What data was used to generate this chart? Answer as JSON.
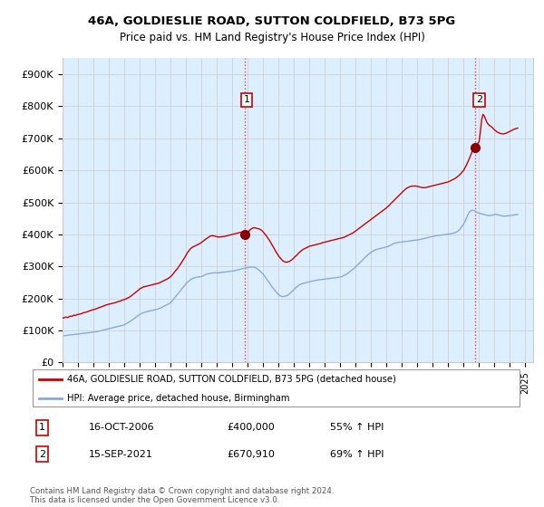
{
  "title": "46A, GOLDIESLIE ROAD, SUTTON COLDFIELD, B73 5PG",
  "subtitle": "Price paid vs. HM Land Registry's House Price Index (HPI)",
  "ylim": [
    0,
    950000
  ],
  "yticks": [
    0,
    100000,
    200000,
    300000,
    400000,
    500000,
    600000,
    700000,
    800000,
    900000
  ],
  "ytick_labels": [
    "£0",
    "£100K",
    "£200K",
    "£300K",
    "£400K",
    "£500K",
    "£600K",
    "£700K",
    "£800K",
    "£900K"
  ],
  "xlim": [
    1995,
    2025.5
  ],
  "xtick_years": [
    1995,
    1996,
    1997,
    1998,
    1999,
    2000,
    2001,
    2002,
    2003,
    2004,
    2005,
    2006,
    2007,
    2008,
    2009,
    2010,
    2011,
    2012,
    2013,
    2014,
    2015,
    2016,
    2017,
    2018,
    2019,
    2020,
    2021,
    2022,
    2023,
    2024,
    2025
  ],
  "property_line_color": "#cc0000",
  "hpi_line_color": "#88aadd",
  "bg_fill_color": "#ddeeff",
  "transaction1_x": 2006.79,
  "transaction1_y": 400000,
  "transaction1_label": "1",
  "transaction1_date": "16-OCT-2006",
  "transaction1_price": "£400,000",
  "transaction1_hpi": "55% ↑ HPI",
  "transaction2_x": 2021.71,
  "transaction2_y": 670910,
  "transaction2_label": "2",
  "transaction2_date": "15-SEP-2021",
  "transaction2_price": "£670,910",
  "transaction2_hpi": "69% ↑ HPI",
  "vline_color": "#dd4444",
  "vline_style": ":",
  "legend_property": "46A, GOLDIESLIE ROAD, SUTTON COLDFIELD, B73 5PG (detached house)",
  "legend_hpi": "HPI: Average price, detached house, Birmingham",
  "footnote": "Contains HM Land Registry data © Crown copyright and database right 2024.\nThis data is licensed under the Open Government Licence v3.0.",
  "property_data_x": [
    1995.0,
    1995.08,
    1995.17,
    1995.25,
    1995.33,
    1995.42,
    1995.5,
    1995.58,
    1995.67,
    1995.75,
    1995.83,
    1995.92,
    1996.0,
    1996.08,
    1996.17,
    1996.25,
    1996.33,
    1996.42,
    1996.5,
    1996.58,
    1996.67,
    1996.75,
    1996.83,
    1996.92,
    1997.0,
    1997.08,
    1997.17,
    1997.25,
    1997.33,
    1997.42,
    1997.5,
    1997.58,
    1997.67,
    1997.75,
    1997.83,
    1997.92,
    1998.0,
    1998.08,
    1998.17,
    1998.25,
    1998.33,
    1998.42,
    1998.5,
    1998.58,
    1998.67,
    1998.75,
    1998.83,
    1998.92,
    1999.0,
    1999.08,
    1999.17,
    1999.25,
    1999.33,
    1999.42,
    1999.5,
    1999.58,
    1999.67,
    1999.75,
    1999.83,
    1999.92,
    2000.0,
    2000.08,
    2000.17,
    2000.25,
    2000.33,
    2000.42,
    2000.5,
    2000.58,
    2000.67,
    2000.75,
    2000.83,
    2000.92,
    2001.0,
    2001.08,
    2001.17,
    2001.25,
    2001.33,
    2001.42,
    2001.5,
    2001.58,
    2001.67,
    2001.75,
    2001.83,
    2001.92,
    2002.0,
    2002.08,
    2002.17,
    2002.25,
    2002.33,
    2002.42,
    2002.5,
    2002.58,
    2002.67,
    2002.75,
    2002.83,
    2002.92,
    2003.0,
    2003.08,
    2003.17,
    2003.25,
    2003.33,
    2003.42,
    2003.5,
    2003.58,
    2003.67,
    2003.75,
    2003.83,
    2003.92,
    2004.0,
    2004.08,
    2004.17,
    2004.25,
    2004.33,
    2004.42,
    2004.5,
    2004.58,
    2004.67,
    2004.75,
    2004.83,
    2004.92,
    2005.0,
    2005.08,
    2005.17,
    2005.25,
    2005.33,
    2005.42,
    2005.5,
    2005.58,
    2005.67,
    2005.75,
    2005.83,
    2005.92,
    2006.0,
    2006.08,
    2006.17,
    2006.25,
    2006.33,
    2006.42,
    2006.5,
    2006.58,
    2006.67,
    2006.75,
    2006.79,
    2007.0,
    2007.08,
    2007.17,
    2007.25,
    2007.33,
    2007.42,
    2007.5,
    2007.58,
    2007.67,
    2007.75,
    2007.83,
    2007.92,
    2008.0,
    2008.08,
    2008.17,
    2008.25,
    2008.33,
    2008.42,
    2008.5,
    2008.58,
    2008.67,
    2008.75,
    2008.83,
    2008.92,
    2009.0,
    2009.08,
    2009.17,
    2009.25,
    2009.33,
    2009.42,
    2009.5,
    2009.58,
    2009.67,
    2009.75,
    2009.83,
    2009.92,
    2010.0,
    2010.08,
    2010.17,
    2010.25,
    2010.33,
    2010.42,
    2010.5,
    2010.58,
    2010.67,
    2010.75,
    2010.83,
    2010.92,
    2011.0,
    2011.08,
    2011.17,
    2011.25,
    2011.33,
    2011.42,
    2011.5,
    2011.58,
    2011.67,
    2011.75,
    2011.83,
    2011.92,
    2012.0,
    2012.08,
    2012.17,
    2012.25,
    2012.33,
    2012.42,
    2012.5,
    2012.58,
    2012.67,
    2012.75,
    2012.83,
    2012.92,
    2013.0,
    2013.08,
    2013.17,
    2013.25,
    2013.33,
    2013.42,
    2013.5,
    2013.58,
    2013.67,
    2013.75,
    2013.83,
    2013.92,
    2014.0,
    2014.08,
    2014.17,
    2014.25,
    2014.33,
    2014.42,
    2014.5,
    2014.58,
    2014.67,
    2014.75,
    2014.83,
    2014.92,
    2015.0,
    2015.08,
    2015.17,
    2015.25,
    2015.33,
    2015.42,
    2015.5,
    2015.58,
    2015.67,
    2015.75,
    2015.83,
    2015.92,
    2016.0,
    2016.08,
    2016.17,
    2016.25,
    2016.33,
    2016.42,
    2016.5,
    2016.58,
    2016.67,
    2016.75,
    2016.83,
    2016.92,
    2017.0,
    2017.08,
    2017.17,
    2017.25,
    2017.33,
    2017.42,
    2017.5,
    2017.58,
    2017.67,
    2017.75,
    2017.83,
    2017.92,
    2018.0,
    2018.08,
    2018.17,
    2018.25,
    2018.33,
    2018.42,
    2018.5,
    2018.58,
    2018.67,
    2018.75,
    2018.83,
    2018.92,
    2019.0,
    2019.08,
    2019.17,
    2019.25,
    2019.33,
    2019.42,
    2019.5,
    2019.58,
    2019.67,
    2019.75,
    2019.83,
    2019.92,
    2020.0,
    2020.08,
    2020.17,
    2020.25,
    2020.33,
    2020.42,
    2020.5,
    2020.58,
    2020.67,
    2020.75,
    2020.83,
    2020.92,
    2021.0,
    2021.08,
    2021.17,
    2021.25,
    2021.33,
    2021.42,
    2021.5,
    2021.58,
    2021.67,
    2021.71,
    2022.0,
    2022.08,
    2022.17,
    2022.25,
    2022.33,
    2022.42,
    2022.5,
    2022.58,
    2022.67,
    2022.75,
    2022.83,
    2022.92,
    2023.0,
    2023.08,
    2023.17,
    2023.25,
    2023.33,
    2023.42,
    2023.5,
    2023.58,
    2023.67,
    2023.75,
    2023.83,
    2023.92,
    2024.0,
    2024.08,
    2024.17,
    2024.25,
    2024.33,
    2024.42,
    2024.5
  ],
  "property_data_y": [
    140000,
    139000,
    141000,
    142000,
    140000,
    143000,
    145000,
    144000,
    146000,
    148000,
    147000,
    149000,
    150000,
    151000,
    152000,
    153000,
    155000,
    156000,
    157000,
    158000,
    160000,
    161000,
    163000,
    164000,
    165000,
    166000,
    168000,
    169000,
    171000,
    172000,
    174000,
    175000,
    177000,
    178000,
    180000,
    181000,
    182000,
    183000,
    184000,
    185000,
    186000,
    187000,
    188000,
    190000,
    191000,
    192000,
    194000,
    195000,
    197000,
    198000,
    200000,
    202000,
    204000,
    207000,
    210000,
    213000,
    216000,
    219000,
    222000,
    226000,
    230000,
    232000,
    234000,
    236000,
    237000,
    238000,
    239000,
    240000,
    241000,
    242000,
    243000,
    244000,
    245000,
    246000,
    247000,
    248000,
    250000,
    252000,
    254000,
    256000,
    258000,
    260000,
    262000,
    265000,
    268000,
    272000,
    277000,
    282000,
    287000,
    292000,
    297000,
    303000,
    309000,
    315000,
    321000,
    328000,
    335000,
    342000,
    348000,
    353000,
    357000,
    360000,
    362000,
    364000,
    366000,
    368000,
    370000,
    372000,
    375000,
    378000,
    381000,
    384000,
    387000,
    390000,
    393000,
    395000,
    396000,
    396000,
    395000,
    394000,
    393000,
    392000,
    392000,
    392000,
    393000,
    393000,
    394000,
    395000,
    396000,
    397000,
    398000,
    399000,
    400000,
    401000,
    402000,
    403000,
    404000,
    405000,
    406000,
    407000,
    408000,
    409000,
    400000,
    407000,
    410000,
    415000,
    418000,
    420000,
    421000,
    420000,
    419000,
    418000,
    417000,
    415000,
    412000,
    408000,
    403000,
    398000,
    393000,
    387000,
    381000,
    374000,
    367000,
    360000,
    353000,
    346000,
    339000,
    333000,
    328000,
    323000,
    319000,
    316000,
    314000,
    313000,
    314000,
    315000,
    317000,
    320000,
    323000,
    327000,
    331000,
    335000,
    339000,
    343000,
    347000,
    350000,
    353000,
    355000,
    357000,
    359000,
    361000,
    363000,
    364000,
    365000,
    366000,
    367000,
    368000,
    369000,
    370000,
    371000,
    372000,
    374000,
    375000,
    376000,
    377000,
    378000,
    379000,
    380000,
    381000,
    382000,
    383000,
    384000,
    385000,
    386000,
    387000,
    388000,
    389000,
    390000,
    391000,
    393000,
    395000,
    397000,
    399000,
    401000,
    403000,
    405000,
    408000,
    411000,
    414000,
    417000,
    420000,
    423000,
    426000,
    429000,
    432000,
    435000,
    438000,
    441000,
    444000,
    447000,
    450000,
    453000,
    456000,
    459000,
    462000,
    465000,
    468000,
    471000,
    474000,
    477000,
    480000,
    483000,
    487000,
    491000,
    495000,
    499000,
    503000,
    507000,
    511000,
    515000,
    519000,
    523000,
    527000,
    531000,
    535000,
    539000,
    542000,
    545000,
    547000,
    549000,
    550000,
    551000,
    551000,
    551000,
    551000,
    550000,
    549000,
    548000,
    547000,
    546000,
    546000,
    546000,
    547000,
    548000,
    549000,
    550000,
    551000,
    552000,
    553000,
    554000,
    555000,
    556000,
    557000,
    558000,
    559000,
    560000,
    561000,
    562000,
    563000,
    564000,
    566000,
    568000,
    570000,
    572000,
    574000,
    577000,
    580000,
    583000,
    587000,
    591000,
    596000,
    600000,
    608000,
    616000,
    624000,
    633000,
    643000,
    653000,
    663000,
    671000,
    670910,
    690000,
    720000,
    760000,
    775000,
    770000,
    760000,
    750000,
    745000,
    740000,
    738000,
    735000,
    730000,
    726000,
    723000,
    720000,
    718000,
    716000,
    715000,
    714000,
    714000,
    715000,
    716000,
    718000,
    720000,
    722000,
    724000,
    726000,
    728000,
    730000,
    731000,
    732000
  ],
  "hpi_data_x": [
    1995.0,
    1995.08,
    1995.17,
    1995.25,
    1995.33,
    1995.42,
    1995.5,
    1995.58,
    1995.67,
    1995.75,
    1995.83,
    1995.92,
    1996.0,
    1996.08,
    1996.17,
    1996.25,
    1996.33,
    1996.42,
    1996.5,
    1996.58,
    1996.67,
    1996.75,
    1996.83,
    1996.92,
    1997.0,
    1997.08,
    1997.17,
    1997.25,
    1997.33,
    1997.42,
    1997.5,
    1997.58,
    1997.67,
    1997.75,
    1997.83,
    1997.92,
    1998.0,
    1998.08,
    1998.17,
    1998.25,
    1998.33,
    1998.42,
    1998.5,
    1998.58,
    1998.67,
    1998.75,
    1998.83,
    1998.92,
    1999.0,
    1999.08,
    1999.17,
    1999.25,
    1999.33,
    1999.42,
    1999.5,
    1999.58,
    1999.67,
    1999.75,
    1999.83,
    1999.92,
    2000.0,
    2000.08,
    2000.17,
    2000.25,
    2000.33,
    2000.42,
    2000.5,
    2000.58,
    2000.67,
    2000.75,
    2000.83,
    2000.92,
    2001.0,
    2001.08,
    2001.17,
    2001.25,
    2001.33,
    2001.42,
    2001.5,
    2001.58,
    2001.67,
    2001.75,
    2001.83,
    2001.92,
    2002.0,
    2002.08,
    2002.17,
    2002.25,
    2002.33,
    2002.42,
    2002.5,
    2002.58,
    2002.67,
    2002.75,
    2002.83,
    2002.92,
    2003.0,
    2003.08,
    2003.17,
    2003.25,
    2003.33,
    2003.42,
    2003.5,
    2003.58,
    2003.67,
    2003.75,
    2003.83,
    2003.92,
    2004.0,
    2004.08,
    2004.17,
    2004.25,
    2004.33,
    2004.42,
    2004.5,
    2004.58,
    2004.67,
    2004.75,
    2004.83,
    2004.92,
    2005.0,
    2005.08,
    2005.17,
    2005.25,
    2005.33,
    2005.42,
    2005.5,
    2005.58,
    2005.67,
    2005.75,
    2005.83,
    2005.92,
    2006.0,
    2006.08,
    2006.17,
    2006.25,
    2006.33,
    2006.42,
    2006.5,
    2006.58,
    2006.67,
    2006.75,
    2006.83,
    2006.92,
    2007.0,
    2007.08,
    2007.17,
    2007.25,
    2007.33,
    2007.42,
    2007.5,
    2007.58,
    2007.67,
    2007.75,
    2007.83,
    2007.92,
    2008.0,
    2008.08,
    2008.17,
    2008.25,
    2008.33,
    2008.42,
    2008.5,
    2008.58,
    2008.67,
    2008.75,
    2008.83,
    2008.92,
    2009.0,
    2009.08,
    2009.17,
    2009.25,
    2009.33,
    2009.42,
    2009.5,
    2009.58,
    2009.67,
    2009.75,
    2009.83,
    2009.92,
    2010.0,
    2010.08,
    2010.17,
    2010.25,
    2010.33,
    2010.42,
    2010.5,
    2010.58,
    2010.67,
    2010.75,
    2010.83,
    2010.92,
    2011.0,
    2011.08,
    2011.17,
    2011.25,
    2011.33,
    2011.42,
    2011.5,
    2011.58,
    2011.67,
    2011.75,
    2011.83,
    2011.92,
    2012.0,
    2012.08,
    2012.17,
    2012.25,
    2012.33,
    2012.42,
    2012.5,
    2012.58,
    2012.67,
    2012.75,
    2012.83,
    2012.92,
    2013.0,
    2013.08,
    2013.17,
    2013.25,
    2013.33,
    2013.42,
    2013.5,
    2013.58,
    2013.67,
    2013.75,
    2013.83,
    2013.92,
    2014.0,
    2014.08,
    2014.17,
    2014.25,
    2014.33,
    2014.42,
    2014.5,
    2014.58,
    2014.67,
    2014.75,
    2014.83,
    2014.92,
    2015.0,
    2015.08,
    2015.17,
    2015.25,
    2015.33,
    2015.42,
    2015.5,
    2015.58,
    2015.67,
    2015.75,
    2015.83,
    2015.92,
    2016.0,
    2016.08,
    2016.17,
    2016.25,
    2016.33,
    2016.42,
    2016.5,
    2016.58,
    2016.67,
    2016.75,
    2016.83,
    2016.92,
    2017.0,
    2017.08,
    2017.17,
    2017.25,
    2017.33,
    2017.42,
    2017.5,
    2017.58,
    2017.67,
    2017.75,
    2017.83,
    2017.92,
    2018.0,
    2018.08,
    2018.17,
    2018.25,
    2018.33,
    2018.42,
    2018.5,
    2018.58,
    2018.67,
    2018.75,
    2018.83,
    2018.92,
    2019.0,
    2019.08,
    2019.17,
    2019.25,
    2019.33,
    2019.42,
    2019.5,
    2019.58,
    2019.67,
    2019.75,
    2019.83,
    2019.92,
    2020.0,
    2020.08,
    2020.17,
    2020.25,
    2020.33,
    2020.42,
    2020.5,
    2020.58,
    2020.67,
    2020.75,
    2020.83,
    2020.92,
    2021.0,
    2021.08,
    2021.17,
    2021.25,
    2021.33,
    2021.42,
    2021.5,
    2021.58,
    2021.67,
    2021.75,
    2021.83,
    2021.92,
    2022.0,
    2022.08,
    2022.17,
    2022.25,
    2022.33,
    2022.42,
    2022.5,
    2022.58,
    2022.67,
    2022.75,
    2022.83,
    2022.92,
    2023.0,
    2023.08,
    2023.17,
    2023.25,
    2023.33,
    2023.42,
    2023.5,
    2023.58,
    2023.67,
    2023.75,
    2023.83,
    2023.92,
    2024.0,
    2024.08,
    2024.17,
    2024.25,
    2024.33,
    2024.42,
    2024.5
  ],
  "hpi_data_y": [
    83000,
    83500,
    84000,
    84500,
    85000,
    85500,
    86000,
    86500,
    87000,
    87500,
    88000,
    88500,
    89000,
    89500,
    90000,
    90500,
    91000,
    91500,
    92000,
    92500,
    93000,
    93500,
    94000,
    94500,
    95000,
    95500,
    96000,
    96500,
    97500,
    98500,
    99500,
    100500,
    101500,
    102500,
    103500,
    104500,
    105500,
    106500,
    107500,
    108500,
    109500,
    110500,
    111500,
    112500,
    113500,
    114500,
    115500,
    116500,
    118000,
    120000,
    122000,
    124500,
    127000,
    129500,
    132000,
    135000,
    138000,
    141000,
    144000,
    147000,
    150000,
    152000,
    154000,
    156000,
    157000,
    158000,
    159000,
    160000,
    161000,
    162000,
    163000,
    164000,
    165000,
    166000,
    167000,
    168500,
    170000,
    172000,
    174000,
    176000,
    178000,
    180000,
    182000,
    184000,
    187000,
    191000,
    196000,
    201000,
    206000,
    211000,
    216000,
    221000,
    226000,
    231000,
    236000,
    241000,
    246000,
    250000,
    254000,
    257000,
    260000,
    262000,
    264000,
    265000,
    266000,
    267000,
    267500,
    268000,
    268500,
    270000,
    272000,
    274000,
    276000,
    277000,
    278000,
    279000,
    279500,
    280000,
    280000,
    280000,
    280000,
    280000,
    280500,
    281000,
    281500,
    282000,
    282500,
    283000,
    283500,
    284000,
    284500,
    285000,
    285500,
    286000,
    287000,
    288000,
    289000,
    290000,
    291000,
    292000,
    293000,
    294000,
    295000,
    296000,
    297000,
    297500,
    298000,
    298500,
    298000,
    297500,
    296000,
    294000,
    291000,
    288000,
    284000,
    280000,
    276000,
    271000,
    265000,
    259000,
    254000,
    248000,
    242000,
    236000,
    231000,
    226000,
    221000,
    216000,
    212000,
    209000,
    207000,
    206000,
    206000,
    207000,
    208000,
    210000,
    213000,
    216000,
    220000,
    224000,
    228000,
    232000,
    236000,
    239000,
    242000,
    244000,
    246000,
    247000,
    248000,
    249000,
    250000,
    251000,
    252000,
    253000,
    254000,
    255000,
    256000,
    257000,
    257500,
    258000,
    258500,
    259000,
    259500,
    260000,
    260500,
    261000,
    261500,
    262000,
    262500,
    263000,
    263500,
    264000,
    264500,
    265000,
    265500,
    266000,
    267000,
    268000,
    270000,
    272000,
    274000,
    276000,
    279000,
    282000,
    285000,
    288000,
    291000,
    295000,
    299000,
    303000,
    307000,
    311000,
    315000,
    319000,
    323000,
    327000,
    331000,
    335000,
    338000,
    341000,
    344000,
    347000,
    349000,
    351000,
    353000,
    354000,
    355000,
    356000,
    357000,
    358000,
    359000,
    360000,
    361000,
    362000,
    364000,
    366000,
    368000,
    370000,
    372000,
    373000,
    374000,
    375000,
    375500,
    376000,
    376500,
    377000,
    377500,
    378000,
    378500,
    379000,
    379500,
    380000,
    380500,
    381000,
    381500,
    382000,
    382500,
    383000,
    384000,
    385000,
    386000,
    387000,
    388000,
    389000,
    390000,
    391000,
    392000,
    393000,
    394000,
    395000,
    395500,
    396000,
    396500,
    397000,
    397500,
    398000,
    398500,
    399000,
    399500,
    400000,
    400500,
    401000,
    402000,
    403000,
    404000,
    405000,
    407000,
    409000,
    412000,
    416000,
    421000,
    427000,
    433000,
    441000,
    450000,
    459000,
    467000,
    472000,
    475000,
    475500,
    474000,
    472000,
    470000,
    468000,
    466000,
    465000,
    464000,
    463000,
    462000,
    461000,
    460000,
    459000,
    459000,
    459500,
    460000,
    461000,
    462000,
    463000,
    462000,
    461000,
    460000,
    459000,
    458000,
    457000,
    457000,
    457500,
    458000,
    458500,
    459000,
    459500,
    460000,
    461000,
    461500,
    462000,
    462500
  ],
  "background_color": "#ffffff",
  "grid_color": "#cccccc"
}
